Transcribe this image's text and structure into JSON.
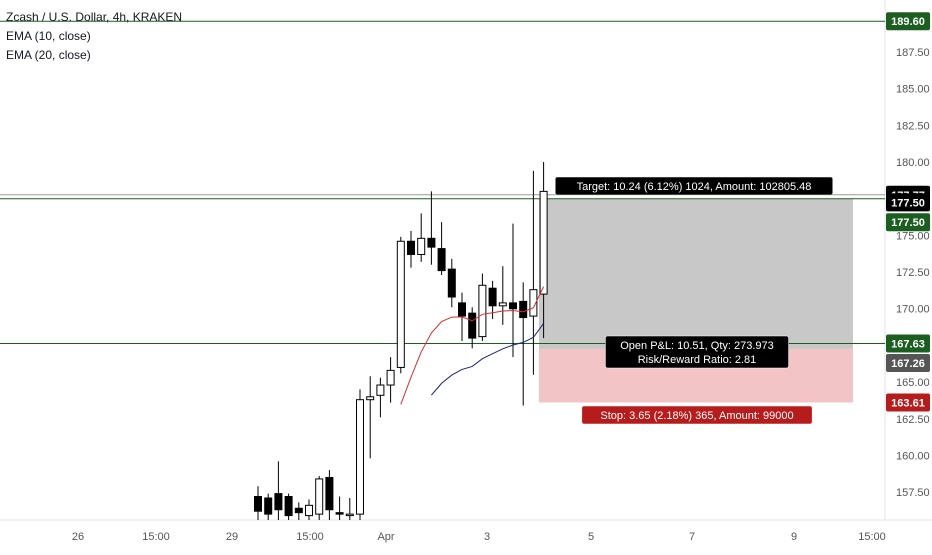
{
  "chart_data": {
    "type": "candlestick",
    "symbol_title": "Zcash / U.S. Dollar, 4h, KRAKEN",
    "indicators": [
      {
        "label": "EMA (10, close)",
        "color": "#d32f2f"
      },
      {
        "label": "EMA (20, close)",
        "color": "#1a237e"
      }
    ],
    "y_axis": {
      "range": [
        155.6,
        190.5
      ],
      "tick_labels": [
        "187.50",
        "185.00",
        "182.50",
        "180.00",
        "177.50",
        "175.00",
        "172.50",
        "170.00",
        "167.50",
        "165.00",
        "162.50",
        "160.00",
        "157.50"
      ]
    },
    "x_axis": {
      "tick_labels": [
        "26",
        "15:00",
        "29",
        "15:00",
        "Apr",
        "3",
        "5",
        "7",
        "9",
        "15:00"
      ]
    },
    "horizontal_lines": [
      189.6,
      177.5,
      167.63
    ],
    "price_labels": [
      {
        "text": "189.60",
        "price": 189.6,
        "bg": "#1b5e20",
        "fg": "#ffffff"
      },
      {
        "text": "177.77",
        "price": 177.77,
        "bg": "#000000",
        "fg": "#ffffff"
      },
      {
        "text": "177.50",
        "price": 177.25,
        "bg": "#000000",
        "fg": "#ffffff"
      },
      {
        "text": "177.50",
        "price": 175.9,
        "bg": "#1b5e20",
        "fg": "#ffffff"
      },
      {
        "text": "167.63",
        "price": 167.63,
        "bg": "#1b5e20",
        "fg": "#ffffff"
      },
      {
        "text": "167.26",
        "price": 166.3,
        "bg": "#555555",
        "fg": "#ffffff"
      },
      {
        "text": "163.61",
        "price": 163.61,
        "bg": "#b71c1c",
        "fg": "#ffffff"
      }
    ],
    "position": {
      "entry": 167.26,
      "target": 177.5,
      "stop": 163.61,
      "profit_color": "#c8c8c8",
      "loss_color": "#f2c4c6",
      "target_label": "Target: 10.24 (6.12%) 1024, Amount: 102805.48",
      "pnl_label": "Open P&L: 10.51, Qty: 273.973",
      "rr_label": "Risk/Reward Ratio: 2.81",
      "stop_label": "Stop: 3.65 (2.18%) 365, Amount: 99000"
    },
    "candles": [
      {
        "o": 157.2,
        "h": 157.9,
        "l": 155.6,
        "c": 156.2
      },
      {
        "o": 157.1,
        "h": 157.4,
        "l": 155.6,
        "c": 156.0
      },
      {
        "o": 157.4,
        "h": 159.6,
        "l": 155.6,
        "c": 156.3
      },
      {
        "o": 157.2,
        "h": 157.4,
        "l": 155.6,
        "c": 155.9
      },
      {
        "o": 156.4,
        "h": 156.8,
        "l": 155.6,
        "c": 156.1
      },
      {
        "o": 155.9,
        "h": 157.0,
        "l": 155.6,
        "c": 156.6
      },
      {
        "o": 156.0,
        "h": 158.6,
        "l": 155.6,
        "c": 158.4
      },
      {
        "o": 158.5,
        "h": 159.0,
        "l": 155.6,
        "c": 156.3
      },
      {
        "o": 156.1,
        "h": 157.2,
        "l": 155.6,
        "c": 156.0
      },
      {
        "o": 155.9,
        "h": 157.1,
        "l": 155.6,
        "c": 156.0
      },
      {
        "o": 156.0,
        "h": 164.5,
        "l": 155.6,
        "c": 163.8
      },
      {
        "o": 163.8,
        "h": 165.4,
        "l": 159.8,
        "c": 164.0
      },
      {
        "o": 164.1,
        "h": 165.3,
        "l": 162.6,
        "c": 164.8
      },
      {
        "o": 164.8,
        "h": 166.7,
        "l": 163.6,
        "c": 165.8
      },
      {
        "o": 166.0,
        "h": 174.9,
        "l": 165.6,
        "c": 174.6
      },
      {
        "o": 174.6,
        "h": 175.3,
        "l": 172.8,
        "c": 173.7
      },
      {
        "o": 173.7,
        "h": 176.5,
        "l": 173.2,
        "c": 174.8
      },
      {
        "o": 174.8,
        "h": 178.0,
        "l": 173.0,
        "c": 174.2
      },
      {
        "o": 174.1,
        "h": 175.9,
        "l": 172.3,
        "c": 172.6
      },
      {
        "o": 172.7,
        "h": 173.4,
        "l": 170.1,
        "c": 170.8
      },
      {
        "o": 170.4,
        "h": 171.1,
        "l": 167.8,
        "c": 169.5
      },
      {
        "o": 169.7,
        "h": 170.1,
        "l": 167.3,
        "c": 168.0
      },
      {
        "o": 168.1,
        "h": 172.4,
        "l": 167.8,
        "c": 171.6
      },
      {
        "o": 171.4,
        "h": 171.9,
        "l": 169.3,
        "c": 170.2
      },
      {
        "o": 170.2,
        "h": 172.9,
        "l": 168.9,
        "c": 170.4
      },
      {
        "o": 170.4,
        "h": 175.8,
        "l": 166.7,
        "c": 170.0
      },
      {
        "o": 170.5,
        "h": 171.8,
        "l": 163.4,
        "c": 169.4
      },
      {
        "o": 169.5,
        "h": 179.4,
        "l": 165.5,
        "c": 171.3
      },
      {
        "o": 171.0,
        "h": 180.0,
        "l": 168.0,
        "c": 178.0
      }
    ]
  }
}
